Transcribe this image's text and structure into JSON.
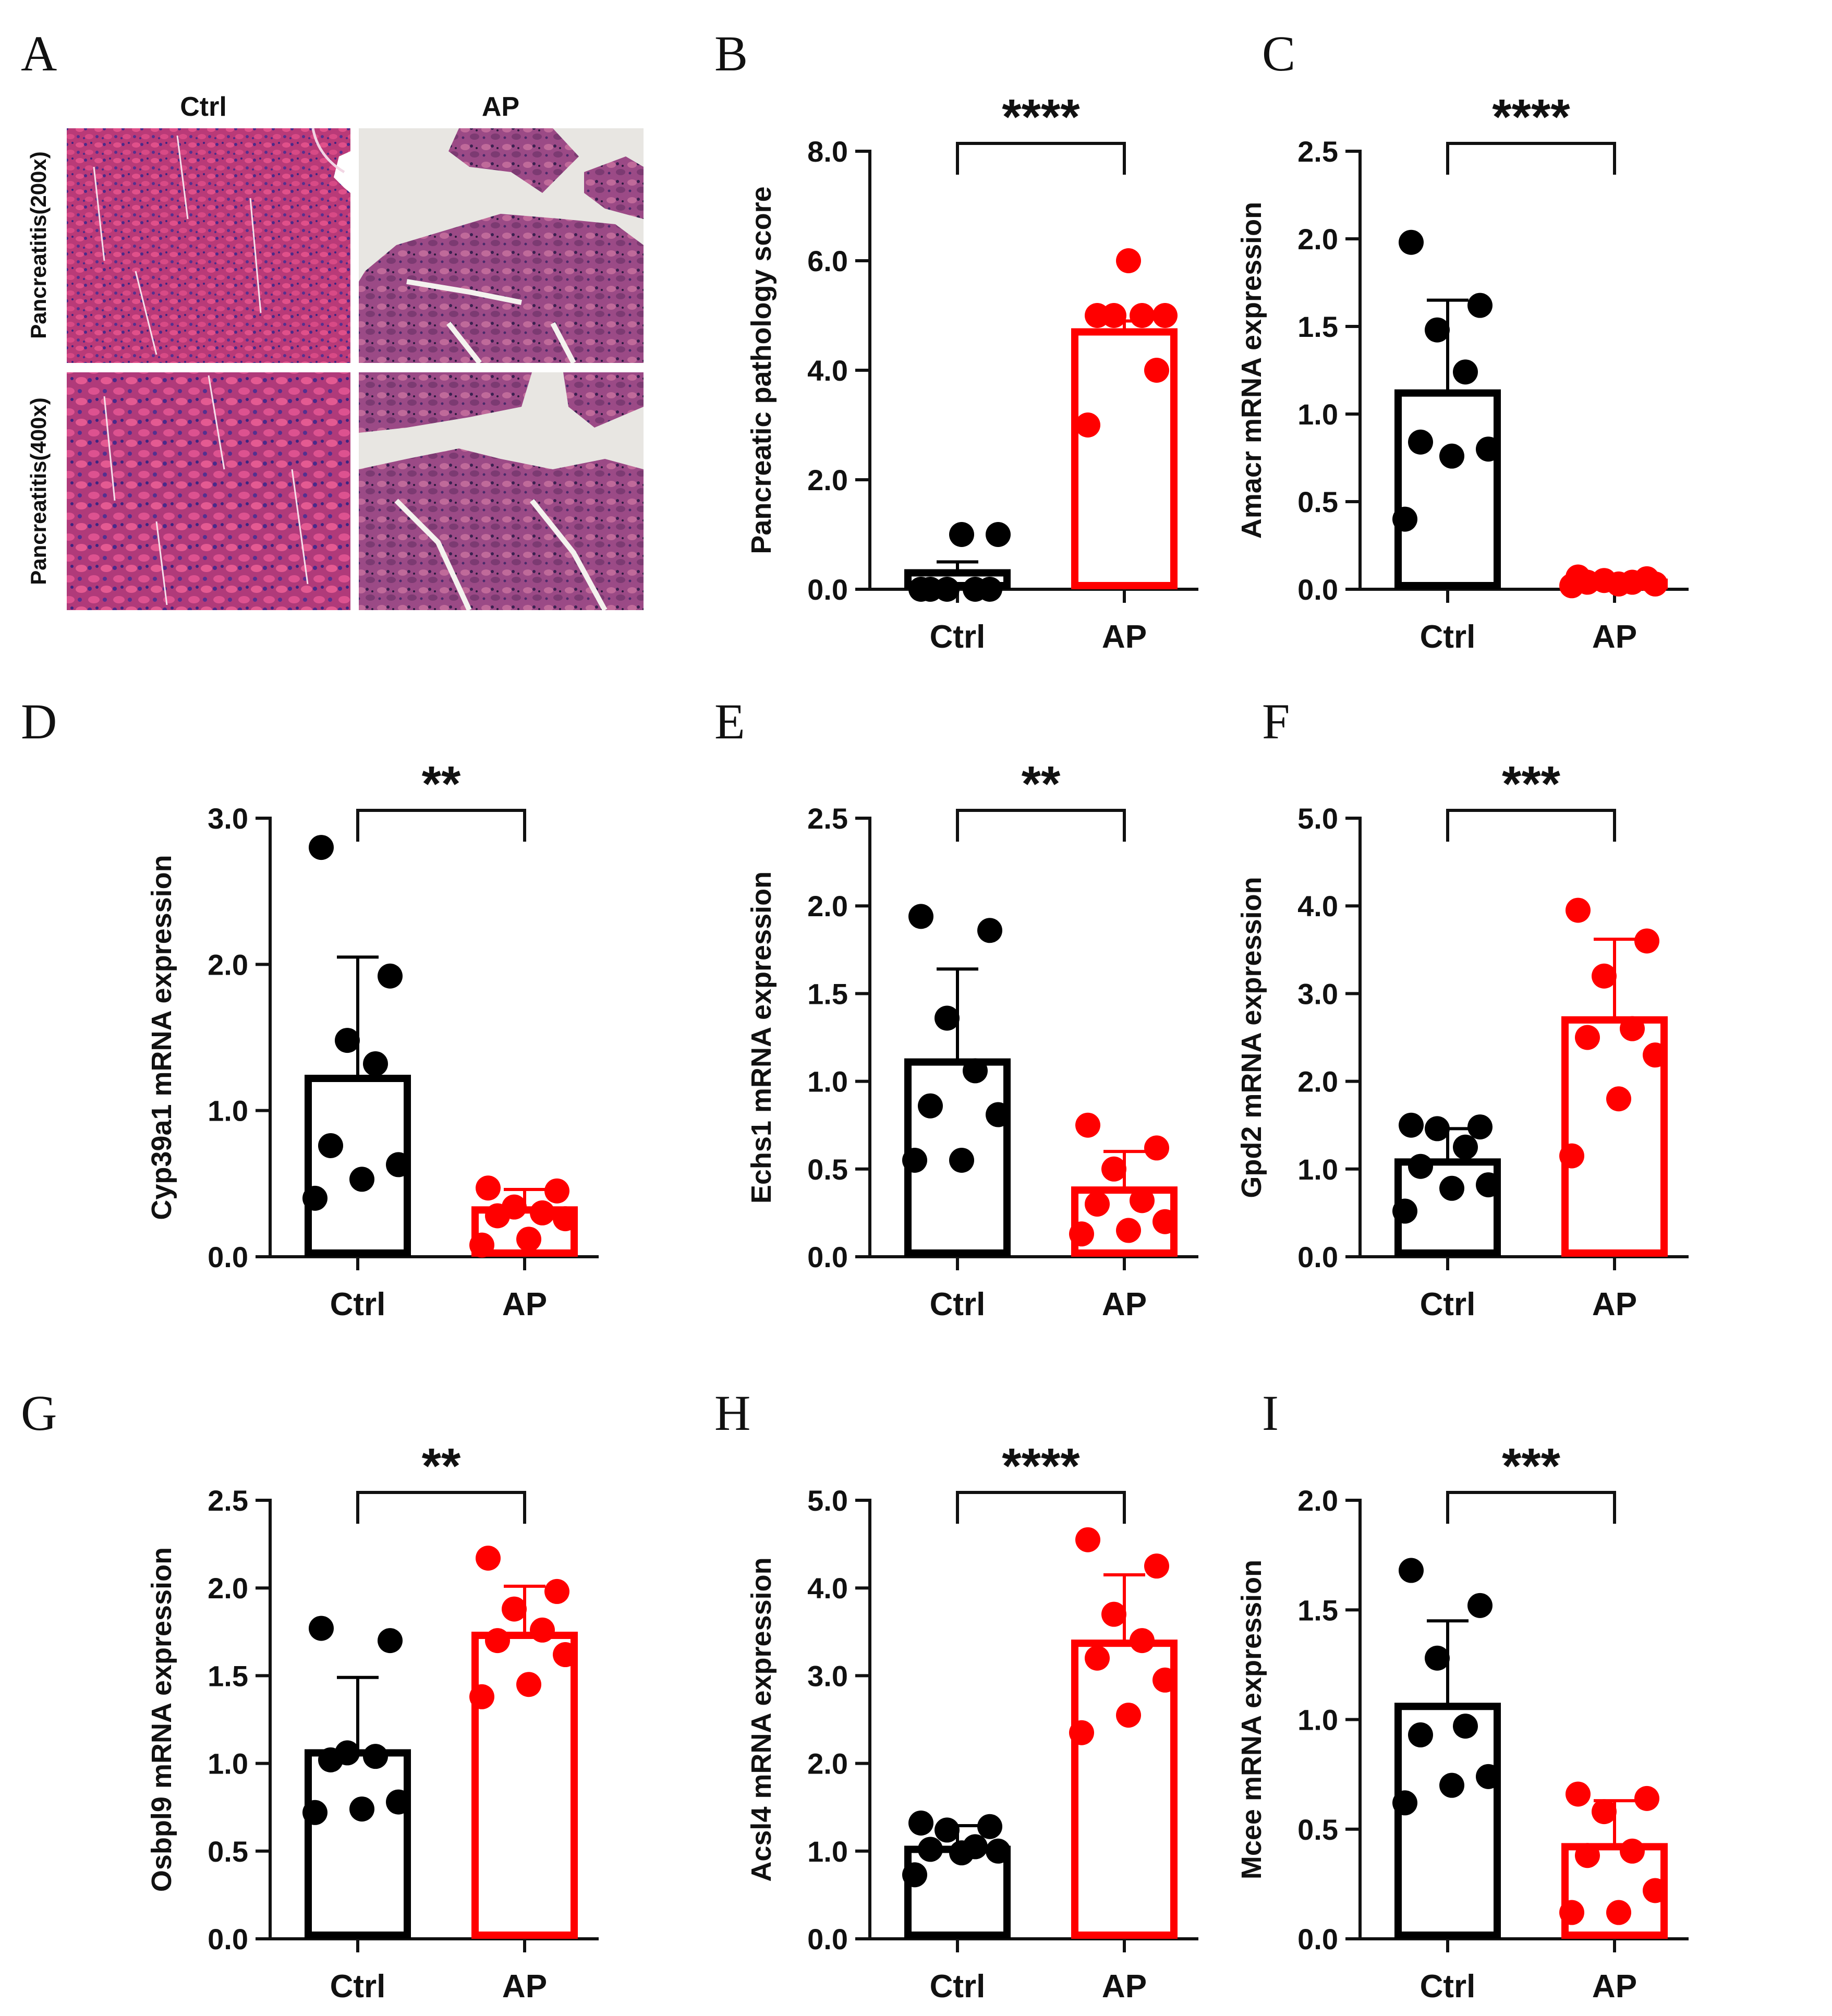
{
  "figure": {
    "colors": {
      "ctrl": "#000000",
      "ap": "#ff0000",
      "axis": "#111111"
    },
    "histology": {
      "letter": "A",
      "columns": [
        "Ctrl",
        "AP"
      ],
      "rows": [
        "Pancreatitis(200x)",
        "Pancreatitis(400x)"
      ]
    }
  },
  "chart_data": [
    {
      "panel": "B",
      "type": "bar",
      "title": "",
      "ylabel": "Pancreatic pathology score",
      "categories": [
        "Ctrl",
        "AP"
      ],
      "ylim": [
        0,
        8
      ],
      "yticks": [
        "0.0",
        "2.0",
        "4.0",
        "6.0",
        "8.0"
      ],
      "significance": "****",
      "series": [
        {
          "name": "Ctrl",
          "mean": 0.3,
          "error": 0.2,
          "points": [
            0,
            0,
            0,
            0,
            0,
            1,
            1
          ]
        },
        {
          "name": "AP",
          "mean": 4.7,
          "error": 0.2,
          "points": [
            3,
            4,
            5,
            5,
            5,
            5,
            6
          ]
        }
      ]
    },
    {
      "panel": "C",
      "type": "bar",
      "title": "",
      "ylabel": "Amacr mRNA expression",
      "categories": [
        "Ctrl",
        "AP"
      ],
      "ylim": [
        0,
        2.5
      ],
      "yticks": [
        "0.0",
        "0.5",
        "1.0",
        "1.5",
        "2.0",
        "2.5"
      ],
      "significance": "****",
      "series": [
        {
          "name": "Ctrl",
          "mean": 1.12,
          "error": 0.53,
          "points": [
            1.98,
            1.62,
            1.48,
            1.24,
            0.84,
            0.8,
            0.76,
            0.4
          ]
        },
        {
          "name": "AP",
          "mean": 0.04,
          "error": 0.03,
          "points": [
            0.07,
            0.06,
            0.05,
            0.04,
            0.04,
            0.03,
            0.03,
            0.02
          ]
        }
      ]
    },
    {
      "panel": "D",
      "type": "bar",
      "title": "",
      "ylabel": "Cyp39a1 mRNA expression",
      "categories": [
        "Ctrl",
        "AP"
      ],
      "ylim": [
        0,
        3
      ],
      "yticks": [
        "0.0",
        "1.0",
        "2.0",
        "3.0"
      ],
      "significance": "**",
      "series": [
        {
          "name": "Ctrl",
          "mean": 1.22,
          "error": 0.83,
          "points": [
            2.8,
            1.92,
            1.48,
            1.32,
            0.76,
            0.63,
            0.53,
            0.4
          ]
        },
        {
          "name": "AP",
          "mean": 0.32,
          "error": 0.14,
          "points": [
            0.47,
            0.45,
            0.34,
            0.3,
            0.28,
            0.26,
            0.12,
            0.08
          ]
        }
      ]
    },
    {
      "panel": "E",
      "type": "bar",
      "title": "",
      "ylabel": "Echs1 mRNA expression",
      "categories": [
        "Ctrl",
        "AP"
      ],
      "ylim": [
        0,
        2.5
      ],
      "yticks": [
        "0.0",
        "0.5",
        "1.0",
        "1.5",
        "2.0",
        "2.5"
      ],
      "significance": "**",
      "series": [
        {
          "name": "Ctrl",
          "mean": 1.11,
          "error": 0.53,
          "points": [
            1.94,
            1.86,
            1.36,
            1.06,
            0.86,
            0.81,
            0.55,
            0.55
          ]
        },
        {
          "name": "AP",
          "mean": 0.38,
          "error": 0.22,
          "points": [
            0.75,
            0.62,
            0.5,
            0.32,
            0.3,
            0.2,
            0.15,
            0.13
          ]
        }
      ]
    },
    {
      "panel": "F",
      "type": "bar",
      "title": "",
      "ylabel": "Gpd2 mRNA expression",
      "categories": [
        "Ctrl",
        "AP"
      ],
      "ylim": [
        0,
        5
      ],
      "yticks": [
        "0.0",
        "1.0",
        "2.0",
        "3.0",
        "4.0",
        "5.0"
      ],
      "significance": "***",
      "series": [
        {
          "name": "Ctrl",
          "mean": 1.08,
          "error": 0.38,
          "points": [
            1.5,
            1.48,
            1.46,
            1.25,
            1.03,
            0.82,
            0.78,
            0.52
          ]
        },
        {
          "name": "AP",
          "mean": 2.7,
          "error": 0.92,
          "points": [
            3.95,
            3.6,
            3.2,
            2.6,
            2.5,
            2.3,
            1.8,
            1.15
          ]
        }
      ]
    },
    {
      "panel": "G",
      "type": "bar",
      "title": "",
      "ylabel": "Osbpl9 mRNA expression",
      "categories": [
        "Ctrl",
        "AP"
      ],
      "ylim": [
        0,
        2.5
      ],
      "yticks": [
        "0.0",
        "0.5",
        "1.0",
        "1.5",
        "2.0",
        "2.5"
      ],
      "significance": "**",
      "series": [
        {
          "name": "Ctrl",
          "mean": 1.06,
          "error": 0.43,
          "points": [
            1.77,
            1.7,
            1.06,
            1.04,
            1.02,
            0.78,
            0.74,
            0.72
          ]
        },
        {
          "name": "AP",
          "mean": 1.73,
          "error": 0.28,
          "points": [
            2.17,
            1.98,
            1.88,
            1.76,
            1.7,
            1.62,
            1.45,
            1.38
          ]
        }
      ]
    },
    {
      "panel": "H",
      "type": "bar",
      "title": "",
      "ylabel": "Acsl4 mRNA expression",
      "categories": [
        "Ctrl",
        "AP"
      ],
      "ylim": [
        0,
        5
      ],
      "yticks": [
        "0.0",
        "1.0",
        "2.0",
        "3.0",
        "4.0",
        "5.0"
      ],
      "significance": "****",
      "series": [
        {
          "name": "Ctrl",
          "mean": 1.02,
          "error": 0.27,
          "points": [
            1.32,
            1.28,
            1.24,
            1.05,
            1.02,
            1.0,
            0.98,
            0.73
          ]
        },
        {
          "name": "AP",
          "mean": 3.37,
          "error": 0.78,
          "points": [
            4.55,
            4.25,
            3.7,
            3.4,
            3.2,
            2.95,
            2.55,
            2.35
          ]
        }
      ]
    },
    {
      "panel": "I",
      "type": "bar",
      "title": "",
      "ylabel": "Mcee mRNA expression",
      "categories": [
        "Ctrl",
        "AP"
      ],
      "ylim": [
        0,
        2
      ],
      "yticks": [
        "0.0",
        "0.5",
        "1.0",
        "1.5",
        "2.0"
      ],
      "significance": "***",
      "series": [
        {
          "name": "Ctrl",
          "mean": 1.06,
          "error": 0.39,
          "points": [
            1.68,
            1.52,
            1.28,
            0.97,
            0.93,
            0.74,
            0.7,
            0.62
          ]
        },
        {
          "name": "AP",
          "mean": 0.42,
          "error": 0.21,
          "points": [
            0.66,
            0.64,
            0.58,
            0.4,
            0.38,
            0.22,
            0.12,
            0.12
          ]
        }
      ]
    }
  ]
}
